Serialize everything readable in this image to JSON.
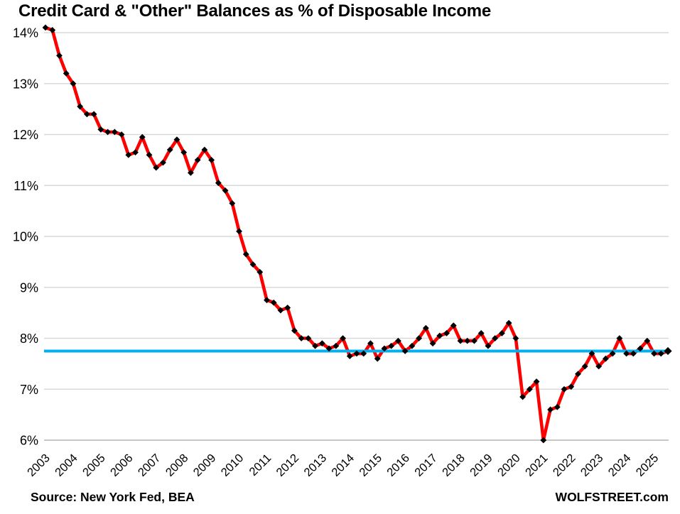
{
  "header": {
    "title": "Credit Card & \"Other\" Balances as % of Disposable Income"
  },
  "footer": {
    "source": "Source: New York Fed, BEA",
    "brand": "WOLFSTREET.com"
  },
  "chart_data": {
    "type": "line",
    "title": "Credit Card & \"Other\" Balances as % of Disposable Income",
    "xlabel": "",
    "ylabel": "",
    "frequency": "quarterly",
    "start_quarter": "2003Q1",
    "end_quarter": "2025Q3",
    "x_tick_labels": [
      "2003",
      "2004",
      "2005",
      "2006",
      "2007",
      "2008",
      "2009",
      "2010",
      "2011",
      "2012",
      "2013",
      "2014",
      "2015",
      "2016",
      "2017",
      "2018",
      "2019",
      "2020",
      "2021",
      "2022",
      "2023",
      "2024",
      "2025"
    ],
    "y_axis": {
      "min": 6,
      "max": 14,
      "step": 1,
      "suffix": "%"
    },
    "grid": true,
    "legend_position": "none",
    "series": [
      {
        "name": "Credit card & other balances as % of disposable income",
        "color": "#FF0000",
        "marker": "diamond",
        "marker_color": "#000000",
        "values": [
          14.1,
          14.05,
          13.55,
          13.2,
          13.0,
          12.55,
          12.4,
          12.4,
          12.1,
          12.05,
          12.05,
          12.0,
          11.6,
          11.65,
          11.95,
          11.6,
          11.35,
          11.45,
          11.7,
          11.9,
          11.65,
          11.25,
          11.5,
          11.7,
          11.5,
          11.05,
          10.9,
          10.65,
          10.1,
          9.65,
          9.45,
          9.3,
          8.75,
          8.7,
          8.55,
          8.6,
          8.15,
          8.0,
          8.0,
          7.85,
          7.9,
          7.8,
          7.85,
          8.0,
          7.65,
          7.7,
          7.7,
          7.9,
          7.6,
          7.8,
          7.85,
          7.95,
          7.75,
          7.85,
          8.0,
          8.2,
          7.9,
          8.05,
          8.1,
          8.25,
          7.95,
          7.95,
          7.95,
          8.1,
          7.85,
          8.0,
          8.1,
          8.3,
          8.0,
          6.85,
          7.0,
          7.15,
          6.0,
          6.6,
          6.65,
          7.0,
          7.05,
          7.3,
          7.45,
          7.7,
          7.45,
          7.6,
          7.7,
          8.0,
          7.7,
          7.7,
          7.8,
          7.95,
          7.7,
          7.7,
          7.75
        ]
      }
    ],
    "reference_line": {
      "value": 7.75,
      "color": "#00B0F0"
    },
    "colors": {
      "grid": "#D9D9D9",
      "axis": "#BFBFBF",
      "text": "#000000",
      "background": "#FFFFFF"
    }
  }
}
